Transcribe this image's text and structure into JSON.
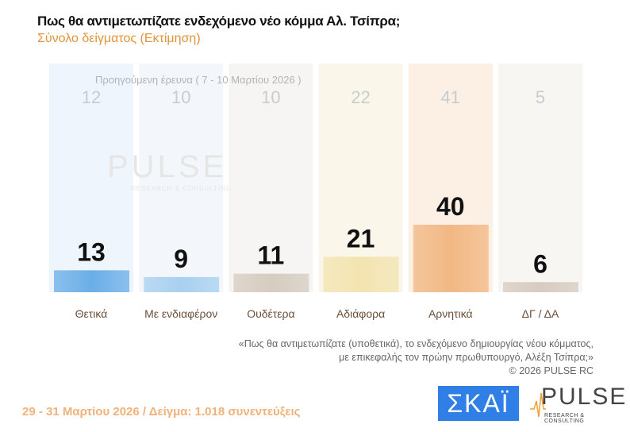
{
  "title": "Πως θα αντιμετωπίζατε ενδεχόμενο νέο κόμμα Αλ. Τσίπρα;",
  "subtitle": "Σύνολο δείγματος  (Εκτίμηση)",
  "chart_data": {
    "type": "bar",
    "categories": [
      "Θετικά",
      "Με ενδιαφέρον",
      "Ουδέτερα",
      "Αδιάφορα",
      "Αρνητικά",
      "ΔΓ / ΔΑ"
    ],
    "series": [
      {
        "name": "Προηγούμενη έρευνα ( 7 - 10 Μαρτίου 2026 )",
        "values": [
          12,
          10,
          10,
          22,
          41,
          5
        ]
      },
      {
        "values": [
          13,
          9,
          11,
          21,
          40,
          6
        ]
      }
    ],
    "previous_label": "Προηγούμενη έρευνα ( 7 - 10 Μαρτίου 2026 )",
    "bar_colors": [
      "#6aaee8",
      "#a8d0f0",
      "#d6ccc0",
      "#f3e4b0",
      "#f2b884",
      "#d6ccc0"
    ],
    "column_bg_colors": [
      "#eef5fc",
      "#f3f7fb",
      "#f6f5f3",
      "#fbf6ea",
      "#fcefe3",
      "#f8f6f3"
    ],
    "ylim": [
      0,
      45
    ]
  },
  "watermark": {
    "brand": "PULSE",
    "tagline": "RESEARCH & CONSULTING"
  },
  "note": {
    "line1": "«Πως θα αντιμετωπίζατε (υποθετικά), το ενδεχόμενο δημιουργίας νέου κόμματος,",
    "line2": "με επικεφαλής τον πρώην πρωθυπουργό, Αλέξη Τσίπρα;»",
    "copyright": "©  2026  PULSE RC"
  },
  "footer": "29 - 31  Μαρτίου 2026  /  Δείγμα:  1.018 συνεντεύξεις",
  "logos": {
    "skai": "ΣΚΑΪ",
    "pulse": "PULSE",
    "pulse_tagline": "RESEARCH & CONSULTING"
  }
}
